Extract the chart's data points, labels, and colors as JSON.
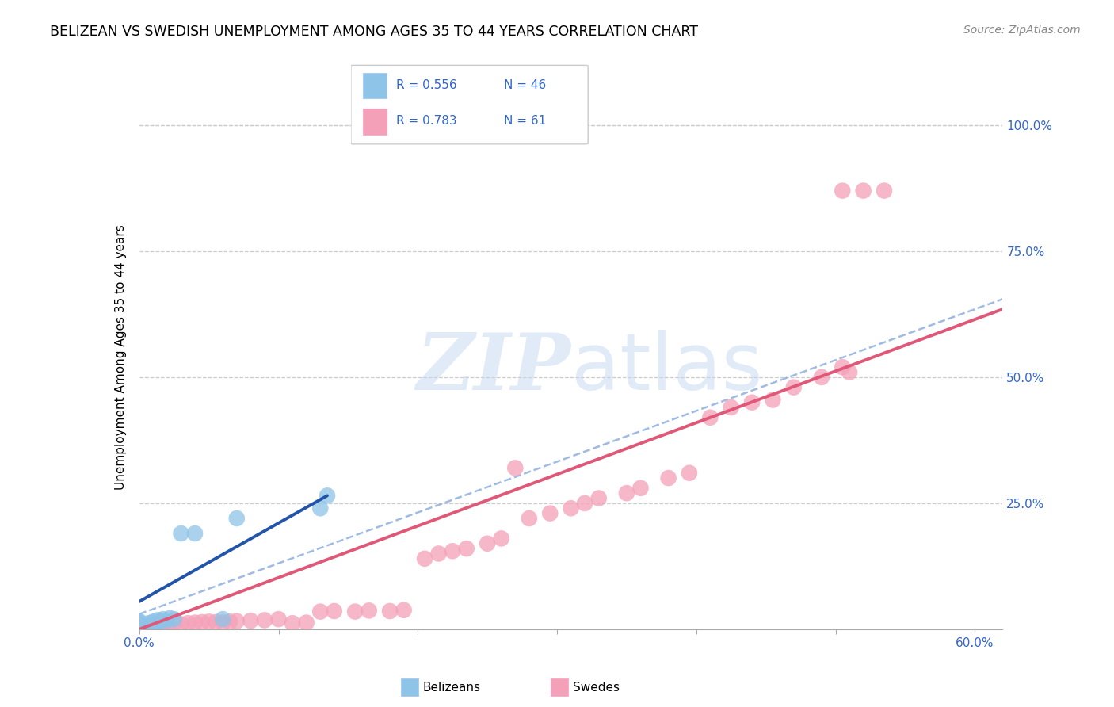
{
  "title": "BELIZEAN VS SWEDISH UNEMPLOYMENT AMONG AGES 35 TO 44 YEARS CORRELATION CHART",
  "source": "Source: ZipAtlas.com",
  "ylabel": "Unemployment Among Ages 35 to 44 years",
  "xlim": [
    0.0,
    0.62
  ],
  "ylim": [
    0.0,
    1.08
  ],
  "yticks": [
    0.0,
    0.25,
    0.5,
    0.75,
    1.0
  ],
  "ytick_labels_right": [
    "",
    "25.0%",
    "50.0%",
    "75.0%",
    "100.0%"
  ],
  "legend_r1": "R = 0.556",
  "legend_n1": "N = 46",
  "legend_r2": "R = 0.783",
  "legend_n2": "N = 61",
  "belizean_color": "#8ec4e8",
  "swedish_color": "#f4a0b8",
  "belizean_line_color": "#2255aa",
  "swedish_line_color": "#e05878",
  "dashed_line_color": "#88aadd",
  "tick_color": "#3366cc",
  "watermark_color": "#c5d8f0",
  "bel_line_x": [
    0.0,
    0.135
  ],
  "bel_line_y": [
    0.055,
    0.265
  ],
  "swe_line_x": [
    0.0,
    0.62
  ],
  "swe_line_y": [
    0.0,
    0.635
  ],
  "dash_line_x": [
    0.0,
    0.62
  ],
  "dash_line_y": [
    0.03,
    0.655
  ],
  "bel_x": [
    0.0,
    0.0,
    0.0,
    0.0,
    0.0,
    0.0,
    0.0,
    0.0,
    0.0,
    0.0,
    0.0,
    0.0,
    0.0,
    0.0,
    0.0,
    0.0,
    0.001,
    0.001,
    0.002,
    0.002,
    0.003,
    0.003,
    0.004,
    0.004,
    0.005,
    0.005,
    0.006,
    0.007,
    0.007,
    0.008,
    0.009,
    0.01,
    0.01,
    0.012,
    0.013,
    0.015,
    0.017,
    0.02,
    0.022,
    0.025,
    0.03,
    0.04,
    0.06,
    0.07,
    0.13,
    0.135
  ],
  "bel_y": [
    0.0,
    0.0,
    0.0,
    0.0,
    0.002,
    0.003,
    0.004,
    0.005,
    0.006,
    0.007,
    0.008,
    0.009,
    0.01,
    0.012,
    0.014,
    0.016,
    0.0,
    0.005,
    0.003,
    0.007,
    0.004,
    0.008,
    0.005,
    0.009,
    0.006,
    0.01,
    0.008,
    0.006,
    0.012,
    0.01,
    0.012,
    0.01,
    0.015,
    0.012,
    0.018,
    0.015,
    0.02,
    0.018,
    0.022,
    0.02,
    0.19,
    0.19,
    0.02,
    0.22,
    0.24,
    0.265
  ],
  "swe_x": [
    0.0,
    0.0,
    0.0,
    0.001,
    0.002,
    0.003,
    0.004,
    0.005,
    0.006,
    0.007,
    0.01,
    0.012,
    0.015,
    0.017,
    0.02,
    0.025,
    0.03,
    0.035,
    0.04,
    0.045,
    0.05,
    0.055,
    0.06,
    0.065,
    0.07,
    0.08,
    0.09,
    0.1,
    0.11,
    0.12,
    0.13,
    0.14,
    0.155,
    0.165,
    0.18,
    0.19,
    0.205,
    0.215,
    0.225,
    0.235,
    0.25,
    0.26,
    0.27,
    0.28,
    0.295,
    0.31,
    0.32,
    0.33,
    0.35,
    0.36,
    0.38,
    0.395,
    0.41,
    0.425,
    0.44,
    0.455,
    0.47,
    0.49,
    0.505,
    0.51,
    0.52
  ],
  "swe_y": [
    0.0,
    0.002,
    0.005,
    0.003,
    0.004,
    0.005,
    0.006,
    0.005,
    0.007,
    0.006,
    0.007,
    0.008,
    0.01,
    0.009,
    0.01,
    0.012,
    0.01,
    0.012,
    0.013,
    0.014,
    0.015,
    0.014,
    0.013,
    0.015,
    0.016,
    0.017,
    0.018,
    0.02,
    0.012,
    0.013,
    0.035,
    0.036,
    0.035,
    0.037,
    0.036,
    0.038,
    0.14,
    0.15,
    0.155,
    0.16,
    0.17,
    0.18,
    0.32,
    0.22,
    0.23,
    0.24,
    0.25,
    0.26,
    0.27,
    0.28,
    0.3,
    0.31,
    0.42,
    0.44,
    0.45,
    0.455,
    0.48,
    0.5,
    0.52,
    0.51,
    0.87
  ]
}
